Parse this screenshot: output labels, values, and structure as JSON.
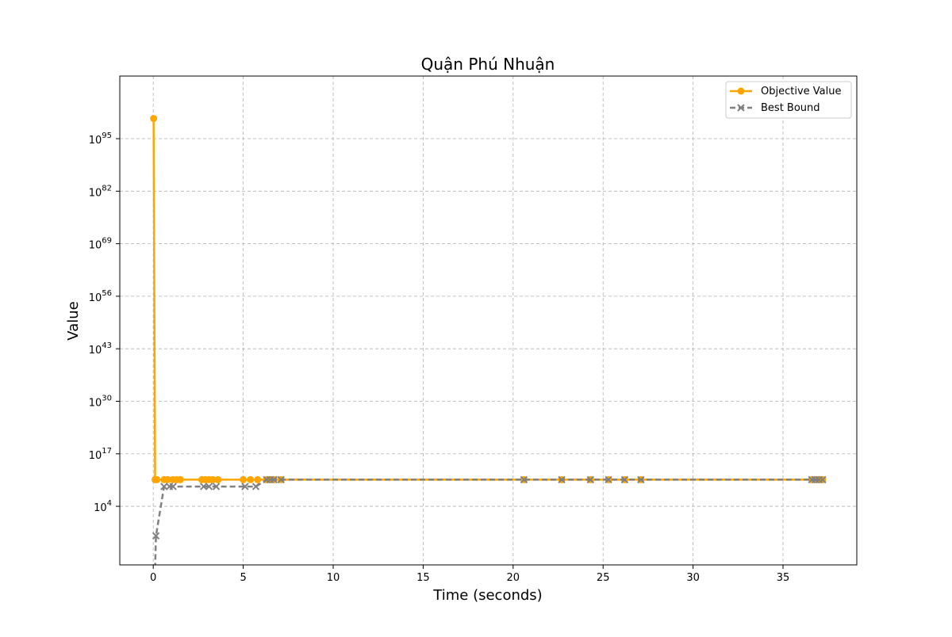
{
  "chart_data": {
    "type": "line",
    "title": "Quận Phú Nhuận",
    "xlabel": "Time (seconds)",
    "ylabel": "Value",
    "xlim": [
      -1.86,
      39.1
    ],
    "ylim_log10": [
      -10.5,
      110.5
    ],
    "y_scale": "log",
    "grid": true,
    "legend_position": "top-right",
    "x_ticks": [
      {
        "value": 0,
        "label": "0"
      },
      {
        "value": 5,
        "label": "5"
      },
      {
        "value": 10,
        "label": "10"
      },
      {
        "value": 15,
        "label": "15"
      },
      {
        "value": 20,
        "label": "20"
      },
      {
        "value": 25,
        "label": "25"
      },
      {
        "value": 30,
        "label": "30"
      },
      {
        "value": 35,
        "label": "35"
      }
    ],
    "y_ticks": [
      {
        "exp": 4,
        "base": "10",
        "sup": "4"
      },
      {
        "exp": 17,
        "base": "10",
        "sup": "17"
      },
      {
        "exp": 30,
        "base": "10",
        "sup": "30"
      },
      {
        "exp": 43,
        "base": "10",
        "sup": "43"
      },
      {
        "exp": 56,
        "base": "10",
        "sup": "56"
      },
      {
        "exp": 69,
        "base": "10",
        "sup": "69"
      },
      {
        "exp": 82,
        "base": "10",
        "sup": "82"
      },
      {
        "exp": 95,
        "base": "10",
        "sup": "95"
      }
    ],
    "series": [
      {
        "name": "Objective Value",
        "color": "#ffa500",
        "marker": "circle",
        "line_style": "solid",
        "points": [
          {
            "x": 0.02,
            "y_log10": 100
          },
          {
            "x": 0.1,
            "y_log10": 10.6
          },
          {
            "x": 0.2,
            "y_log10": 10.6
          },
          {
            "x": 0.6,
            "y_log10": 10.6
          },
          {
            "x": 0.8,
            "y_log10": 10.6
          },
          {
            "x": 1.1,
            "y_log10": 10.6
          },
          {
            "x": 1.3,
            "y_log10": 10.6
          },
          {
            "x": 1.5,
            "y_log10": 10.6
          },
          {
            "x": 2.7,
            "y_log10": 10.6
          },
          {
            "x": 2.9,
            "y_log10": 10.6
          },
          {
            "x": 3.1,
            "y_log10": 10.6
          },
          {
            "x": 3.3,
            "y_log10": 10.6
          },
          {
            "x": 3.6,
            "y_log10": 10.6
          },
          {
            "x": 5.0,
            "y_log10": 10.6
          },
          {
            "x": 5.4,
            "y_log10": 10.6
          },
          {
            "x": 5.8,
            "y_log10": 10.6
          },
          {
            "x": 6.3,
            "y_log10": 10.6
          },
          {
            "x": 6.5,
            "y_log10": 10.6
          },
          {
            "x": 6.7,
            "y_log10": 10.6
          },
          {
            "x": 7.1,
            "y_log10": 10.6
          },
          {
            "x": 20.6,
            "y_log10": 10.6
          },
          {
            "x": 22.7,
            "y_log10": 10.6
          },
          {
            "x": 24.3,
            "y_log10": 10.6
          },
          {
            "x": 25.3,
            "y_log10": 10.6
          },
          {
            "x": 26.2,
            "y_log10": 10.6
          },
          {
            "x": 27.1,
            "y_log10": 10.6
          },
          {
            "x": 36.6,
            "y_log10": 10.6
          },
          {
            "x": 36.8,
            "y_log10": 10.6
          },
          {
            "x": 37.0,
            "y_log10": 10.6
          },
          {
            "x": 37.2,
            "y_log10": 10.6
          }
        ]
      },
      {
        "name": "Best Bound",
        "color": "#808080",
        "marker": "x",
        "line_style": "dashed",
        "points": [
          {
            "x": 0.05,
            "y_log10": -20
          },
          {
            "x": 0.15,
            "y_log10": -3.3
          },
          {
            "x": 0.6,
            "y_log10": 8.9
          },
          {
            "x": 0.9,
            "y_log10": 8.9
          },
          {
            "x": 1.1,
            "y_log10": 8.9
          },
          {
            "x": 2.8,
            "y_log10": 8.9
          },
          {
            "x": 3.1,
            "y_log10": 8.9
          },
          {
            "x": 3.5,
            "y_log10": 8.9
          },
          {
            "x": 5.1,
            "y_log10": 8.9
          },
          {
            "x": 5.7,
            "y_log10": 8.9
          },
          {
            "x": 6.3,
            "y_log10": 10.6
          },
          {
            "x": 6.5,
            "y_log10": 10.6
          },
          {
            "x": 6.7,
            "y_log10": 10.6
          },
          {
            "x": 7.1,
            "y_log10": 10.6
          },
          {
            "x": 20.6,
            "y_log10": 10.6
          },
          {
            "x": 22.7,
            "y_log10": 10.6
          },
          {
            "x": 24.3,
            "y_log10": 10.6
          },
          {
            "x": 25.3,
            "y_log10": 10.6
          },
          {
            "x": 26.2,
            "y_log10": 10.6
          },
          {
            "x": 27.1,
            "y_log10": 10.6
          },
          {
            "x": 36.6,
            "y_log10": 10.6
          },
          {
            "x": 36.8,
            "y_log10": 10.6
          },
          {
            "x": 37.0,
            "y_log10": 10.6
          },
          {
            "x": 37.2,
            "y_log10": 10.6
          }
        ]
      }
    ]
  }
}
